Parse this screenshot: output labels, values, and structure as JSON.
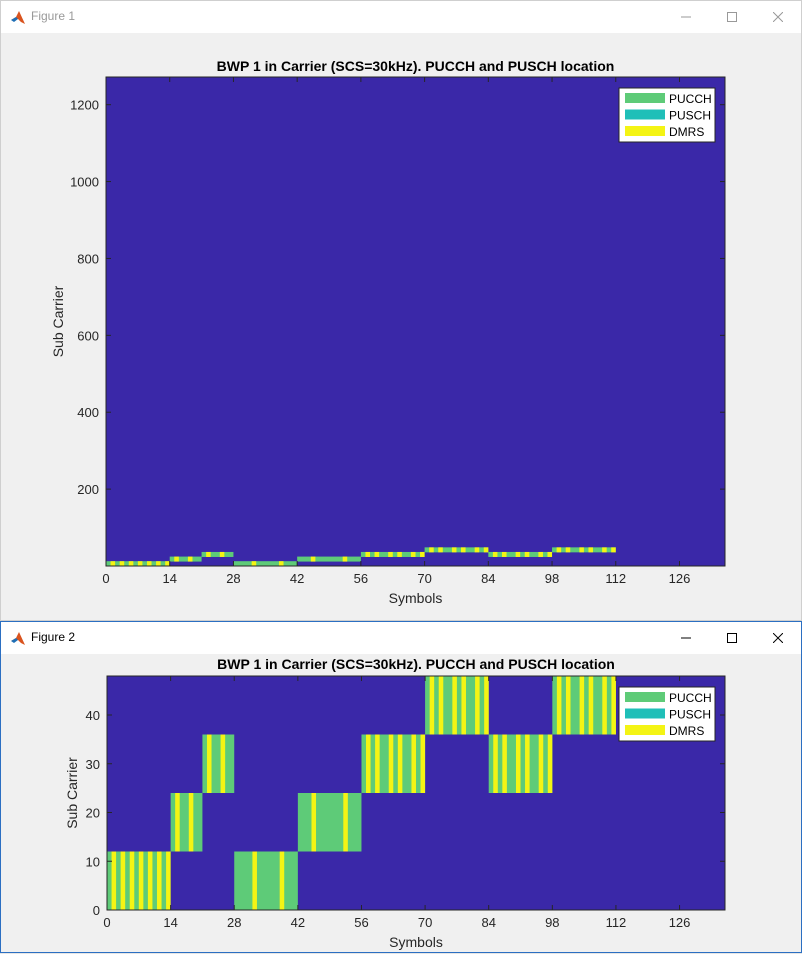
{
  "windows": [
    {
      "title": "Figure 1"
    },
    {
      "title": "Figure 2"
    }
  ],
  "colors": {
    "background": "#3a28a8",
    "pucch": "#5ecb78",
    "pusch": "#1fbfb8",
    "dmrs": "#f4f414"
  },
  "chart_data": [
    {
      "type": "heatmap",
      "title": "BWP 1 in Carrier (SCS=30kHz). PUCCH and PUSCH location",
      "xlabel": "Symbols",
      "ylabel": "Sub Carrier",
      "xlim": [
        0,
        136
      ],
      "ylim": [
        0,
        1272
      ],
      "xticks": [
        0,
        14,
        28,
        42,
        56,
        70,
        84,
        98,
        112,
        126
      ],
      "yticks": [
        200,
        400,
        600,
        800,
        1000,
        1200
      ],
      "legend": {
        "position": "top-right",
        "entries": [
          "PUCCH",
          "PUSCH",
          "DMRS"
        ]
      },
      "grid": false,
      "blocks": [
        {
          "type": "pucch",
          "x": [
            0,
            14
          ],
          "y": [
            0,
            12
          ],
          "dmrs": [
            1,
            3,
            5,
            7,
            9,
            11,
            13
          ]
        },
        {
          "type": "pucch",
          "x": [
            14,
            21
          ],
          "y": [
            12,
            24
          ],
          "dmrs": [
            15,
            18
          ]
        },
        {
          "type": "pucch",
          "x": [
            21,
            28
          ],
          "y": [
            24,
            36
          ],
          "dmrs": [
            22,
            25
          ]
        },
        {
          "type": "pucch",
          "x": [
            28,
            42
          ],
          "y": [
            0,
            12
          ],
          "dmrs": [
            32,
            38
          ]
        },
        {
          "type": "pucch",
          "x": [
            42,
            56
          ],
          "y": [
            12,
            24
          ],
          "dmrs": [
            45,
            52
          ]
        },
        {
          "type": "pucch",
          "x": [
            56,
            70
          ],
          "y": [
            24,
            36
          ],
          "dmrs": [
            57,
            59,
            62,
            64,
            67,
            69
          ]
        },
        {
          "type": "pucch",
          "x": [
            70,
            84
          ],
          "y": [
            36,
            48
          ],
          "dmrs": [
            71,
            73,
            76,
            78,
            81,
            83
          ]
        },
        {
          "type": "pucch",
          "x": [
            84,
            98
          ],
          "y": [
            24,
            36
          ],
          "dmrs": [
            85,
            87,
            90,
            92,
            95,
            97
          ]
        },
        {
          "type": "pucch",
          "x": [
            98,
            112
          ],
          "y": [
            36,
            48
          ],
          "dmrs": [
            99,
            101,
            104,
            106,
            109,
            111
          ]
        }
      ]
    },
    {
      "type": "heatmap",
      "title": "BWP 1 in Carrier (SCS=30kHz). PUCCH and PUSCH location",
      "xlabel": "Symbols",
      "ylabel": "Sub Carrier",
      "xlim": [
        0,
        136
      ],
      "ylim": [
        0,
        48
      ],
      "xticks": [
        0,
        14,
        28,
        42,
        56,
        70,
        84,
        98,
        112,
        126
      ],
      "yticks": [
        0,
        10,
        20,
        30,
        40
      ],
      "legend": {
        "position": "top-right",
        "entries": [
          "PUCCH",
          "PUSCH",
          "DMRS"
        ]
      },
      "grid": false,
      "blocks": [
        {
          "type": "pucch",
          "x": [
            0,
            14
          ],
          "y": [
            0,
            12
          ],
          "dmrs": [
            1,
            3,
            5,
            7,
            9,
            11,
            13
          ]
        },
        {
          "type": "pucch",
          "x": [
            14,
            21
          ],
          "y": [
            12,
            24
          ],
          "dmrs": [
            15,
            18
          ]
        },
        {
          "type": "pucch",
          "x": [
            21,
            28
          ],
          "y": [
            24,
            36
          ],
          "dmrs": [
            22,
            25
          ]
        },
        {
          "type": "pucch",
          "x": [
            28,
            42
          ],
          "y": [
            0,
            12
          ],
          "dmrs": [
            32,
            38
          ]
        },
        {
          "type": "pucch",
          "x": [
            42,
            56
          ],
          "y": [
            12,
            24
          ],
          "dmrs": [
            45,
            52
          ]
        },
        {
          "type": "pucch",
          "x": [
            56,
            70
          ],
          "y": [
            24,
            36
          ],
          "dmrs": [
            57,
            59,
            62,
            64,
            67,
            69
          ]
        },
        {
          "type": "pucch",
          "x": [
            70,
            84
          ],
          "y": [
            36,
            48
          ],
          "dmrs": [
            71,
            73,
            76,
            78,
            81,
            83
          ]
        },
        {
          "type": "pucch",
          "x": [
            84,
            98
          ],
          "y": [
            24,
            36
          ],
          "dmrs": [
            85,
            87,
            90,
            92,
            95,
            97
          ]
        },
        {
          "type": "pucch",
          "x": [
            98,
            112
          ],
          "y": [
            36,
            48
          ],
          "dmrs": [
            99,
            101,
            104,
            106,
            109,
            111
          ]
        }
      ]
    }
  ]
}
